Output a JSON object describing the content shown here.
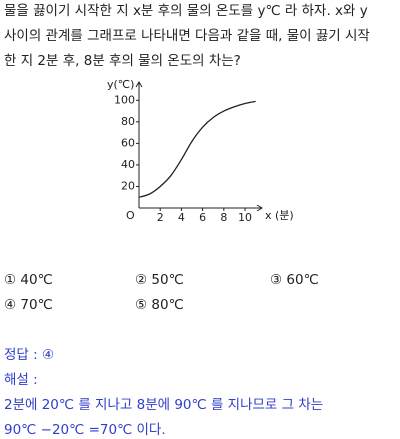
{
  "question": {
    "lines": [
      "물을 끓이기 시작한 지 x분 후의 물의 온도를 y℃ 라 하자. x와 y",
      "사이의 관계를 그래프로 나타내면 다음과 같을 때, 물이 끓기 시작",
      "한 지 2분 후, 8분 후의 물의 온도의 차는?"
    ]
  },
  "chart_data": {
    "type": "line",
    "y_label": "y(℃)",
    "x_label": "x (분)",
    "origin_label": "O",
    "x": [
      0,
      1,
      2,
      3,
      4,
      5,
      6,
      7,
      8,
      9,
      10,
      11
    ],
    "values": [
      10,
      13,
      20,
      30,
      45,
      62,
      75,
      84,
      90,
      94,
      97,
      99
    ],
    "color": "#222222",
    "xlim": [
      0,
      11.6
    ],
    "ylim": [
      0,
      117
    ],
    "xticks": [
      2,
      4,
      6,
      8,
      10
    ],
    "yticks": [
      20,
      40,
      60,
      80,
      100
    ]
  },
  "choices": [
    "① 40℃",
    "② 50℃",
    "③ 60℃",
    "④ 70℃",
    "⑤ 80℃"
  ],
  "answer": {
    "lines": [
      "정답 : ④",
      "해설 :",
      "2분에 20℃ 를 지나고 8분에 90℃ 를 지나므로 그 차는",
      "90℃ −20℃ =70℃ 이다."
    ]
  }
}
